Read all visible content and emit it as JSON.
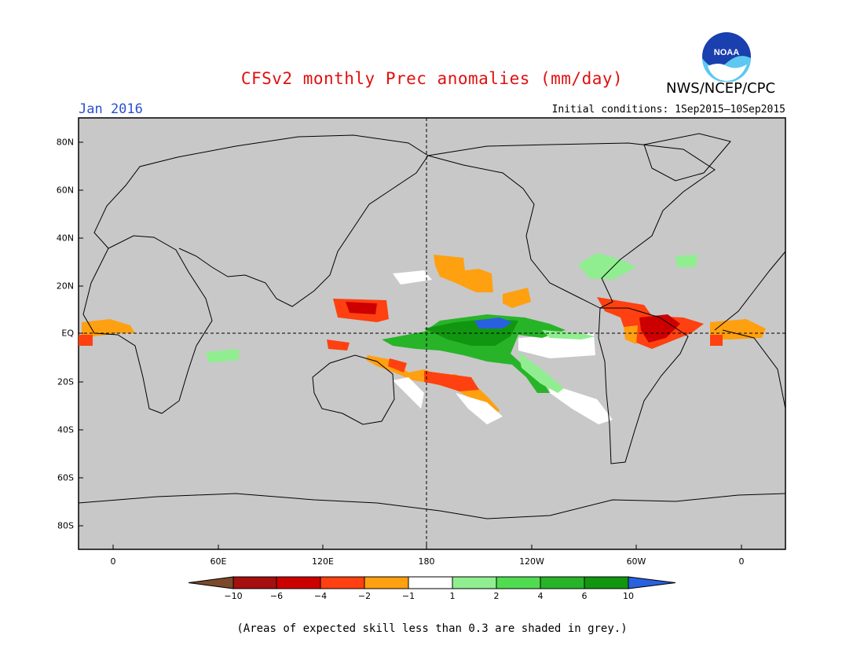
{
  "header": {
    "title": "CFSv2 monthly Prec anomalies (mm/day)",
    "agency": "NWS/NCEP/CPC",
    "month": "Jan 2016",
    "initial_conditions": "Initial conditions: 1Sep2015–10Sep2015",
    "logo_text": "NOAA"
  },
  "map": {
    "background_color": "#c8c8c8",
    "lat_labels": [
      "80N",
      "60N",
      "40N",
      "20N",
      "EQ",
      "20S",
      "40S",
      "60S",
      "80S"
    ],
    "lon_labels": [
      "0",
      "60E",
      "120E",
      "180",
      "120W",
      "60W",
      "0"
    ]
  },
  "colorbar": {
    "labels": [
      "−10",
      "−6",
      "−4",
      "−2",
      "−1",
      "1",
      "2",
      "4",
      "6",
      "10"
    ],
    "colors": [
      "#7a4a2a",
      "#a50f0f",
      "#cc0000",
      "#ff4010",
      "#ffa010",
      "#ffffff",
      "#90ee90",
      "#50dc50",
      "#28b428",
      "#109610",
      "#2860e0"
    ]
  },
  "footer": {
    "skill_note": "(Areas of expected skill less than 0.3 are shaded in grey.)"
  }
}
